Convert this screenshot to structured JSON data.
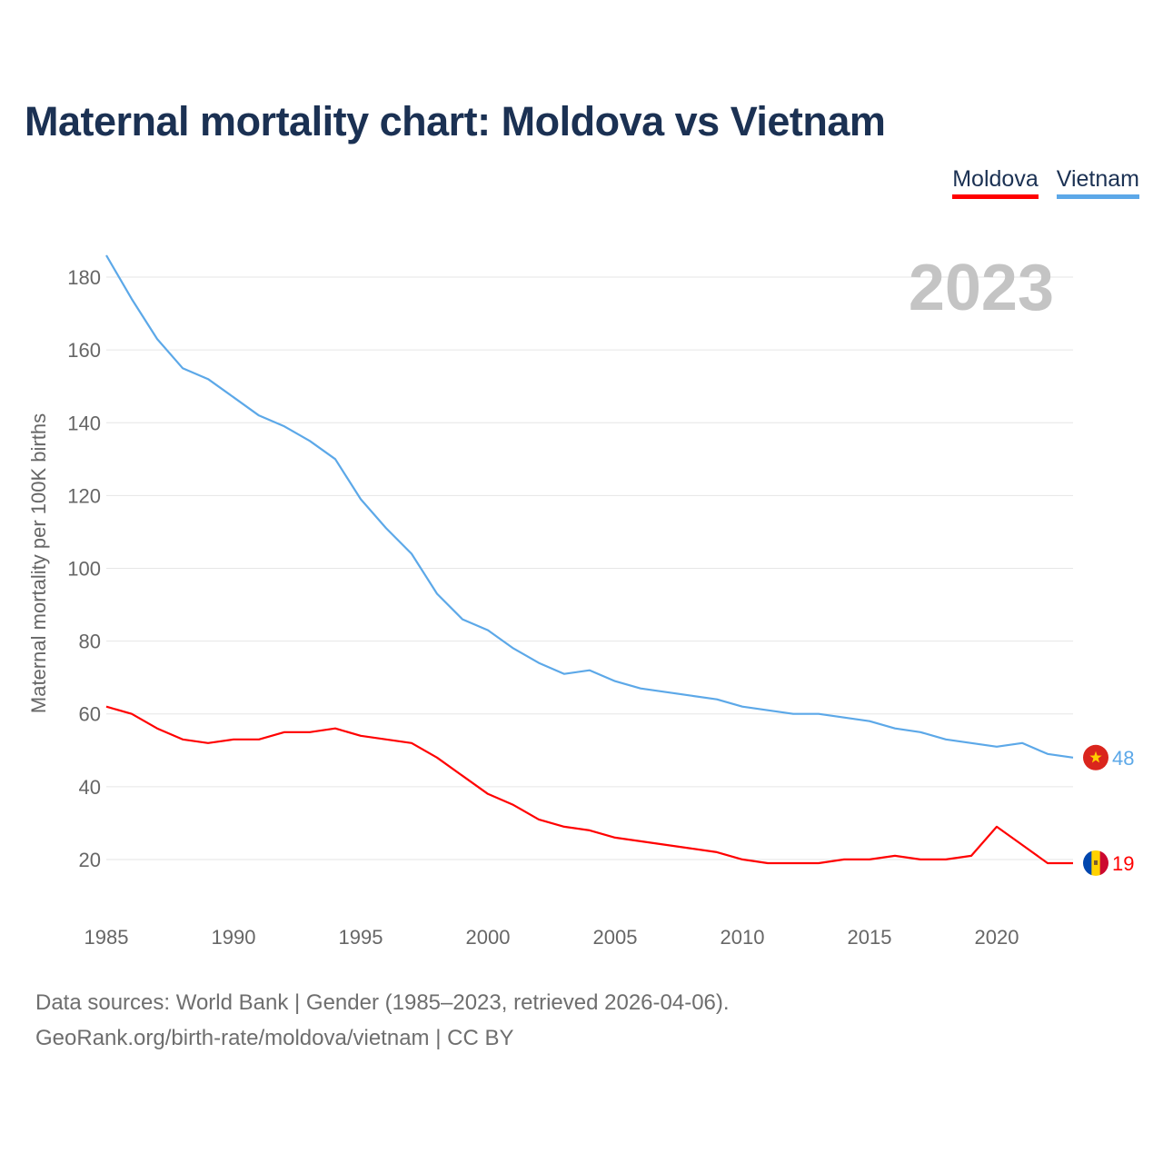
{
  "title": "Maternal mortality chart: Moldova vs Vietnam",
  "legend": [
    {
      "label": "Moldova",
      "color": "#ff0000"
    },
    {
      "label": "Vietnam",
      "color": "#5ca8e8"
    }
  ],
  "year_label": "2023",
  "footer": {
    "line1": "Data sources: World Bank | Gender (1985–2023, retrieved 2026-04-06).",
    "line2": "GeoRank.org/birth-rate/moldova/vietnam | CC BY"
  },
  "flags": {
    "vietnam": {
      "icon": "vietnam-flag-icon",
      "colors": [
        "#da251d",
        "#ffcd00"
      ]
    },
    "moldova": {
      "icon": "moldova-flag-icon",
      "colors": [
        "#0046ae",
        "#ffd200",
        "#cc092f"
      ]
    }
  },
  "chart_data": {
    "type": "line",
    "title": "Maternal mortality chart: Moldova vs Vietnam",
    "xlabel": "",
    "ylabel": "Maternal mortality per 100K births",
    "xlim": [
      1985,
      2023
    ],
    "ylim": [
      10,
      190
    ],
    "xticks": [
      1985,
      1990,
      1995,
      2000,
      2005,
      2010,
      2015,
      2020
    ],
    "yticks": [
      20,
      40,
      60,
      80,
      100,
      120,
      140,
      160,
      180
    ],
    "grid": true,
    "legend_position": "top-right",
    "x": [
      1985,
      1986,
      1987,
      1988,
      1989,
      1990,
      1991,
      1992,
      1993,
      1994,
      1995,
      1996,
      1997,
      1998,
      1999,
      2000,
      2001,
      2002,
      2003,
      2004,
      2005,
      2006,
      2007,
      2008,
      2009,
      2010,
      2011,
      2012,
      2013,
      2014,
      2015,
      2016,
      2017,
      2018,
      2019,
      2020,
      2021,
      2022,
      2023
    ],
    "series": [
      {
        "name": "Vietnam",
        "color": "#5ca8e8",
        "end_label": "48",
        "values": [
          186,
          174,
          163,
          155,
          152,
          147,
          142,
          139,
          135,
          130,
          119,
          111,
          104,
          93,
          86,
          83,
          78,
          74,
          71,
          72,
          69,
          67,
          66,
          65,
          64,
          62,
          61,
          60,
          60,
          59,
          58,
          56,
          55,
          53,
          52,
          51,
          52,
          49,
          48
        ]
      },
      {
        "name": "Moldova",
        "color": "#ff0000",
        "end_label": "19",
        "values": [
          62,
          60,
          56,
          53,
          52,
          53,
          53,
          55,
          55,
          56,
          54,
          53,
          52,
          48,
          43,
          38,
          35,
          31,
          29,
          28,
          26,
          25,
          24,
          23,
          22,
          20,
          19,
          19,
          19,
          20,
          20,
          21,
          20,
          20,
          21,
          29,
          24,
          19,
          19
        ]
      }
    ]
  }
}
